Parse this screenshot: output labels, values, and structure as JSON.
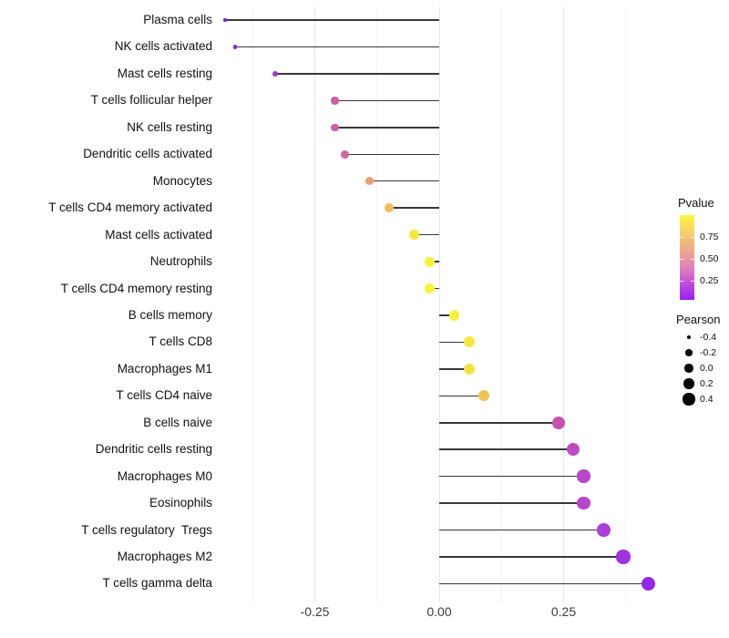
{
  "chart_data": {
    "type": "lollipop",
    "title": "",
    "xlabel": "",
    "ylabel": "",
    "x_axis": {
      "tick_labels": [
        "-0.25",
        "0.00",
        "0.25"
      ],
      "tick_values": [
        -0.25,
        0.0,
        0.25
      ],
      "minor_values": [
        -0.375,
        -0.125,
        0.125,
        0.375
      ],
      "xlim": [
        -0.48,
        0.46
      ]
    },
    "grid": "on",
    "size_domain": [
      -0.43,
      0.42
    ],
    "points": [
      {
        "label": "Plasma cells",
        "pearson": -0.43,
        "color": "#7B22CC"
      },
      {
        "label": "NK cells activated",
        "pearson": -0.41,
        "color": "#8A2BD8"
      },
      {
        "label": "Mast cells resting",
        "pearson": -0.33,
        "color": "#A038D4"
      },
      {
        "label": "T cells follicular helper",
        "pearson": -0.21,
        "color": "#CE5CA6"
      },
      {
        "label": "NK cells resting",
        "pearson": -0.21,
        "color": "#CE5EA4"
      },
      {
        "label": "Dendritic cells activated",
        "pearson": -0.19,
        "color": "#D2689C"
      },
      {
        "label": "Monocytes",
        "pearson": -0.14,
        "color": "#EC9E74"
      },
      {
        "label": "T cells CD4 memory activated",
        "pearson": -0.1,
        "color": "#F2BC5E"
      },
      {
        "label": "Mast cells activated",
        "pearson": -0.05,
        "color": "#F6E93E"
      },
      {
        "label": "Neutrophils",
        "pearson": -0.02,
        "color": "#F9F23A"
      },
      {
        "label": "T cells CD4 memory resting",
        "pearson": -0.02,
        "color": "#F9F23A"
      },
      {
        "label": "B cells memory",
        "pearson": 0.03,
        "color": "#F8EF3C"
      },
      {
        "label": "T cells CD8",
        "pearson": 0.06,
        "color": "#F7E740"
      },
      {
        "label": "Macrophages M1",
        "pearson": 0.06,
        "color": "#F5E144"
      },
      {
        "label": "T cells CD4 naive",
        "pearson": 0.09,
        "color": "#EFC353"
      },
      {
        "label": "B cells naive",
        "pearson": 0.24,
        "color": "#C751AE"
      },
      {
        "label": "Dendritic cells resting",
        "pearson": 0.27,
        "color": "#BE4AC0"
      },
      {
        "label": "Macrophages M0",
        "pearson": 0.29,
        "color": "#B846CA"
      },
      {
        "label": "Eosinophils",
        "pearson": 0.29,
        "color": "#B846CA"
      },
      {
        "label": "T cells regulatory  Tregs",
        "pearson": 0.33,
        "color": "#AC3DD6"
      },
      {
        "label": "Macrophages M2",
        "pearson": 0.37,
        "color": "#A132E2"
      },
      {
        "label": "T cells gamma delta",
        "pearson": 0.42,
        "color": "#9527EC"
      }
    ],
    "legend_pvalue": {
      "title": "Pvalue",
      "ticks": [
        {
          "label": "0.75",
          "value": 0.75
        },
        {
          "label": "0.50",
          "value": 0.5
        },
        {
          "label": "0.25",
          "value": 0.25
        }
      ],
      "bar_value_range": [
        0.03,
        1.0
      ],
      "gradient_stops": [
        "#FCF63D 0%",
        "#F5CD6E 22%",
        "#ECA292 45%",
        "#DC7BC0 65%",
        "#BC4BE0 82%",
        "#9B1FF0 100%"
      ],
      "legend_position": "right"
    },
    "legend_pearson": {
      "title": "Pearson",
      "entries": [
        {
          "label": "-0.4",
          "value": -0.4
        },
        {
          "label": "-0.2",
          "value": -0.2
        },
        {
          "label": "0.0",
          "value": 0.0
        },
        {
          "label": "0.2",
          "value": 0.2
        },
        {
          "label": "0.4",
          "value": 0.4
        }
      ],
      "dot_color": "#000000",
      "legend_position": "right"
    },
    "segment_color": "#383838",
    "background_color": "#ffffff"
  }
}
